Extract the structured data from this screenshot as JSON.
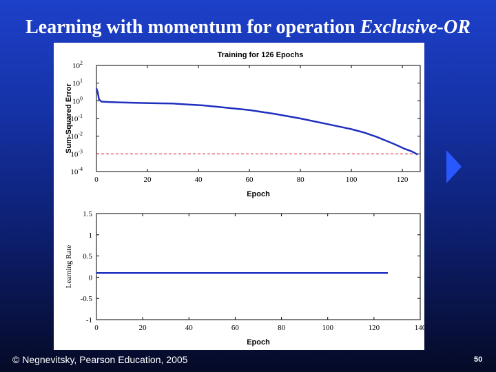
{
  "slide": {
    "title_main": "Learning with momentum for operation ",
    "title_emph": "Exclusive-OR",
    "copyright": "© Negnevitsky, Pearson Education, 2005",
    "page_number": "50",
    "accent_color": "#2a58ff"
  },
  "chart_data": [
    {
      "type": "line",
      "title": "Training for 126 Epochs",
      "xlabel": "Epoch",
      "ylabel": "Sum-Squared Error",
      "yscale": "log",
      "xlim": [
        0,
        127
      ],
      "ylim": [
        0.0001,
        100
      ],
      "xticks": [
        "0",
        "20",
        "40",
        "60",
        "80",
        "100",
        "120"
      ],
      "yticks": [
        {
          "base": "10",
          "exp": "2"
        },
        {
          "base": "10",
          "exp": "1"
        },
        {
          "base": "10",
          "exp": "0"
        },
        {
          "base": "10",
          "exp": "-1"
        },
        {
          "base": "10",
          "exp": "-2"
        },
        {
          "base": "10",
          "exp": "-3"
        },
        {
          "base": "10",
          "exp": "-4"
        }
      ],
      "grid": false,
      "series": [
        {
          "color": "#1f2fbf",
          "x": [
            0,
            0.5,
            1,
            2,
            5,
            10,
            18,
            25,
            30,
            36,
            42,
            50,
            60,
            70,
            80,
            90,
            100,
            105,
            110,
            113,
            116,
            118,
            120,
            121,
            122,
            123,
            124,
            125,
            126
          ],
          "y": [
            5,
            3,
            1.2,
            0.9,
            0.85,
            0.8,
            0.75,
            0.72,
            0.7,
            0.62,
            0.55,
            0.42,
            0.3,
            0.18,
            0.1,
            0.05,
            0.025,
            0.016,
            0.009,
            0.006,
            0.004,
            0.003,
            0.0022,
            0.0019,
            0.0017,
            0.0015,
            0.0013,
            0.0011,
            0.0009
          ]
        }
      ],
      "reference_line": {
        "y": 0.001,
        "style": "dashed",
        "color": "#e03030"
      }
    },
    {
      "type": "line",
      "title": "",
      "xlabel": "Epoch",
      "ylabel": "Learning Rate",
      "xlim": [
        0,
        140
      ],
      "ylim": [
        -1,
        1.5
      ],
      "xticks": [
        "0",
        "20",
        "40",
        "60",
        "80",
        "100",
        "120",
        "140"
      ],
      "yticks": [
        "1.5",
        "1",
        "0.5",
        "0",
        "-0.5",
        "-1"
      ],
      "grid": false,
      "series": [
        {
          "color": "#1f2fbf",
          "x": [
            0,
            126
          ],
          "y": [
            0.1,
            0.1
          ]
        }
      ]
    }
  ]
}
